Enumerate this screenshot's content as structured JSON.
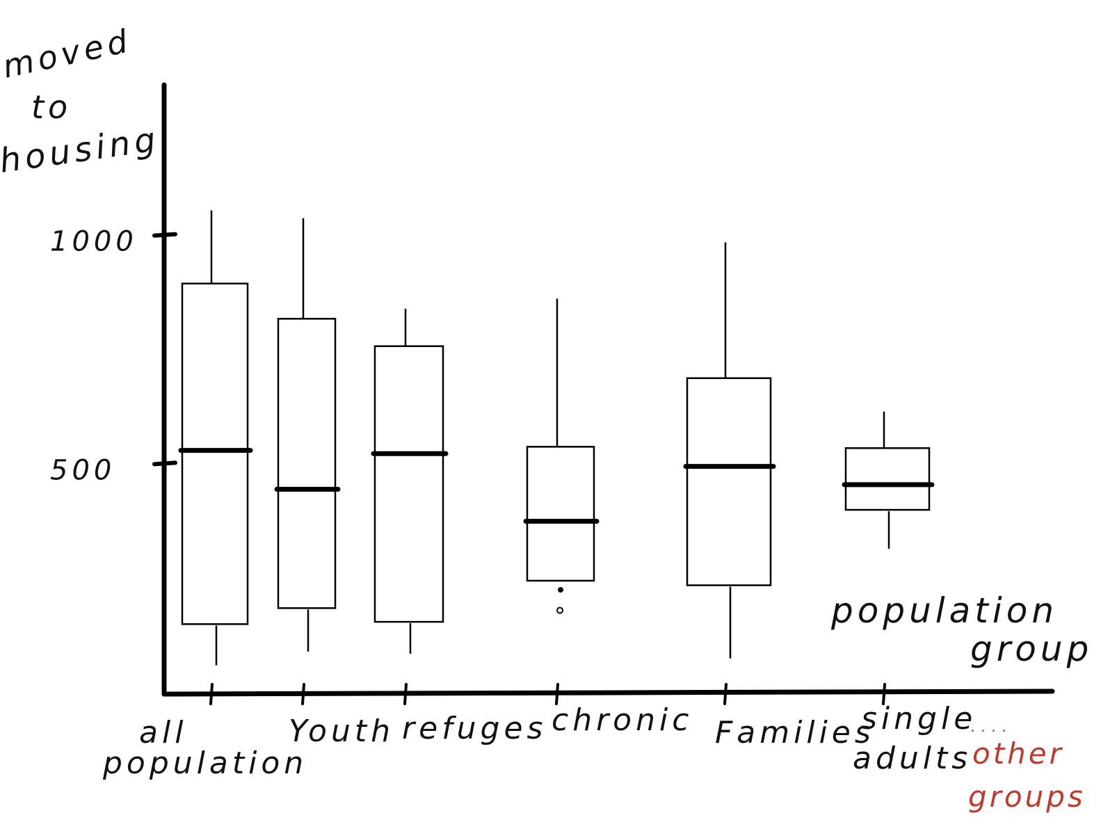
{
  "chart_data": {
    "type": "box",
    "ylabel_lines": [
      "moved",
      "to",
      "housing"
    ],
    "xlabel_lines": [
      "population",
      "group"
    ],
    "y_ticks": [
      {
        "value": 500,
        "label": "500"
      },
      {
        "value": 1000,
        "label": "1000"
      }
    ],
    "categories": [
      {
        "label_lines": [
          "all",
          "population"
        ],
        "whisker_low": 60,
        "q1": 150,
        "median": 530,
        "q3": 895,
        "whisker_high": 1055
      },
      {
        "label_lines": [
          "Youth"
        ],
        "whisker_low": 90,
        "q1": 185,
        "median": 445,
        "q3": 818,
        "whisker_high": 1038
      },
      {
        "label_lines": [
          "refuges"
        ],
        "whisker_low": 85,
        "q1": 155,
        "median": 523,
        "q3": 758,
        "whisker_high": 840
      },
      {
        "label_lines": [
          "chronic"
        ],
        "whisker_low": null,
        "q1": 245,
        "median": 375,
        "q3": 538,
        "whisker_high": 862,
        "outliers": [
          225,
          180
        ]
      },
      {
        "label_lines": [
          "Families"
        ],
        "whisker_low": 75,
        "q1": 235,
        "median": 495,
        "q3": 688,
        "whisker_high": 985
      },
      {
        "label_lines": [
          "single",
          "adults"
        ],
        "whisker_low": 315,
        "q1": 400,
        "median": 455,
        "q3": 535,
        "whisker_high": 615
      }
    ],
    "extra_label": {
      "text_lines": [
        "other",
        "groups"
      ],
      "color": "#c0392b"
    },
    "ylim": [
      -15,
      1300
    ]
  }
}
